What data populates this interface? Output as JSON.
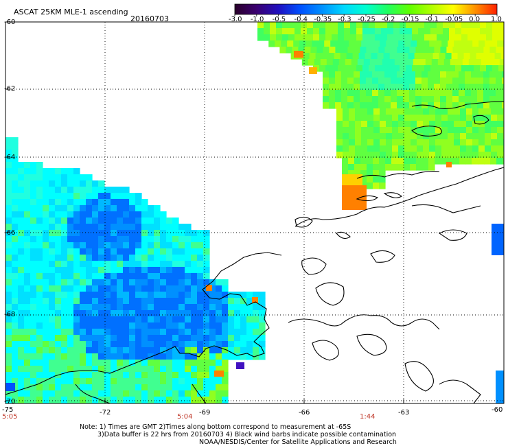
{
  "header": {
    "title": "ASCAT 25KM MLE-1 ascending",
    "date": "20160703"
  },
  "colorbar": {
    "labels": [
      "-3.0",
      "-1.0",
      "-0.5",
      "-0.4",
      "-0.35",
      "-0.3",
      "-0.25",
      "-0.2",
      "-0.15",
      "-0.1",
      "-0.05",
      "0.0",
      "1.0"
    ],
    "colors": [
      "#2a002a",
      "#3a0070",
      "#2010c0",
      "#0050ff",
      "#0090ff",
      "#00d8ff",
      "#00ffd0",
      "#20ff60",
      "#60ff00",
      "#b0ff00",
      "#ffff00",
      "#ff9000",
      "#ff2000"
    ]
  },
  "axes": {
    "lat_labels": [
      "-60",
      "-62",
      "-64",
      "-66",
      "-68",
      "-70"
    ],
    "lon_labels": [
      "-75",
      "-72",
      "-69",
      "-66",
      "-63",
      "-60"
    ],
    "time_labels": [
      "5:05",
      "5:04",
      "1:44"
    ]
  },
  "notes": {
    "line1": "Note: 1) Times are GMT 2)Times along bottom correspond to measurement at -65S",
    "line2": "3)Data buffer is 22 hrs from 20160703 4) Black wind barbs indicate possible contamination",
    "line3": "NOAA/NESDIS/Center for Satellite Applications and Research"
  },
  "colors": {
    "grid": "#000000",
    "coast": "#000000",
    "time_label": "#c0392b",
    "high_mle": "#ff8000",
    "low_mle": "#0064ff",
    "mid_mle": "#00ffff",
    "green_mle": "#40ff40"
  }
}
